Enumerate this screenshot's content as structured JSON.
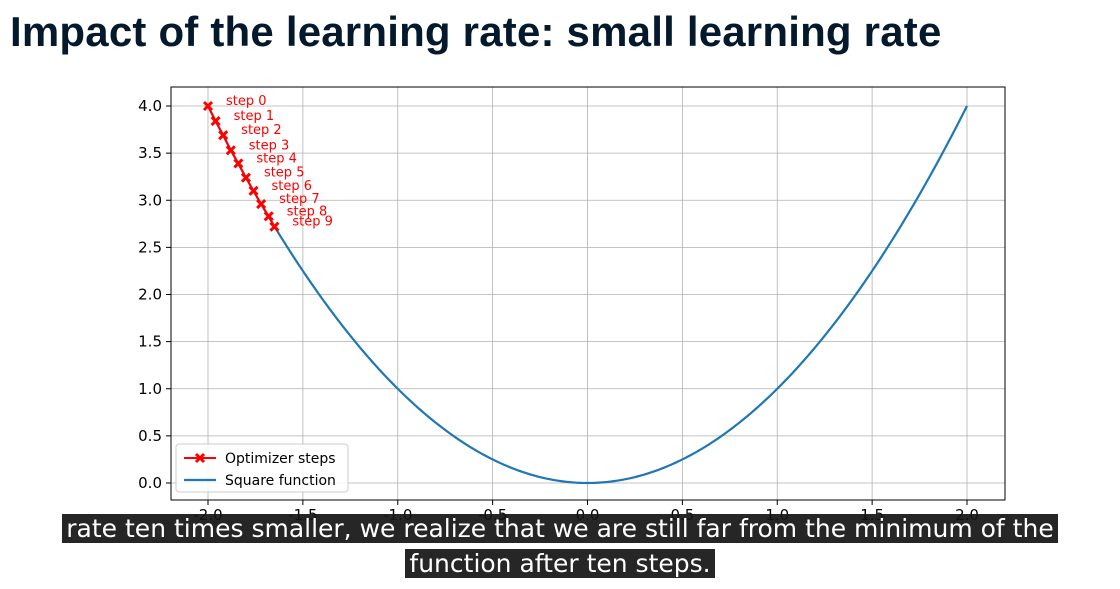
{
  "slide": {
    "title": "Impact of the learning rate: small learning rate"
  },
  "subtitle": {
    "line1": "rate ten times smaller, we realize that we are still far from the minimum of the",
    "line2": "function after ten steps."
  },
  "chart_data": {
    "type": "line",
    "title": "",
    "xlabel": "",
    "ylabel": "",
    "xlim": [
      -2.0,
      2.0
    ],
    "ylim": [
      0.0,
      4.0
    ],
    "x_ticks": [
      -2.0,
      -1.5,
      -1.0,
      -0.5,
      0.0,
      0.5,
      1.0,
      1.5,
      2.0
    ],
    "x_tick_labels": [
      "-2.0",
      "-1.5",
      "-1.0",
      "-0.5",
      "0.0",
      "0.5",
      "1.0",
      "1.5",
      "2.0"
    ],
    "y_ticks": [
      0.0,
      0.5,
      1.0,
      1.5,
      2.0,
      2.5,
      3.0,
      3.5,
      4.0
    ],
    "y_tick_labels": [
      "0.0",
      "0.5",
      "1.0",
      "1.5",
      "2.0",
      "2.5",
      "3.0",
      "3.5",
      "4.0"
    ],
    "grid": true,
    "legend_position": "lower-left",
    "series": [
      {
        "name": "Optimizer steps",
        "kind": "line-marker",
        "color": "#ff0000",
        "x": [
          -2.0,
          -1.96,
          -1.92,
          -1.88,
          -1.84,
          -1.8,
          -1.76,
          -1.72,
          -1.68,
          -1.65
        ],
        "y": [
          4.0,
          3.84,
          3.69,
          3.53,
          3.39,
          3.24,
          3.1,
          2.96,
          2.83,
          2.72
        ]
      },
      {
        "name": "Square function",
        "kind": "line",
        "color": "#1f77b4",
        "function": "x^2",
        "x_range": [
          -2.0,
          2.0
        ]
      }
    ],
    "annotations": [
      "step 0",
      "step 1",
      "step 2",
      "step 3",
      "step 4",
      "step 5",
      "step 6",
      "step 7",
      "step 8",
      "step 9"
    ]
  }
}
